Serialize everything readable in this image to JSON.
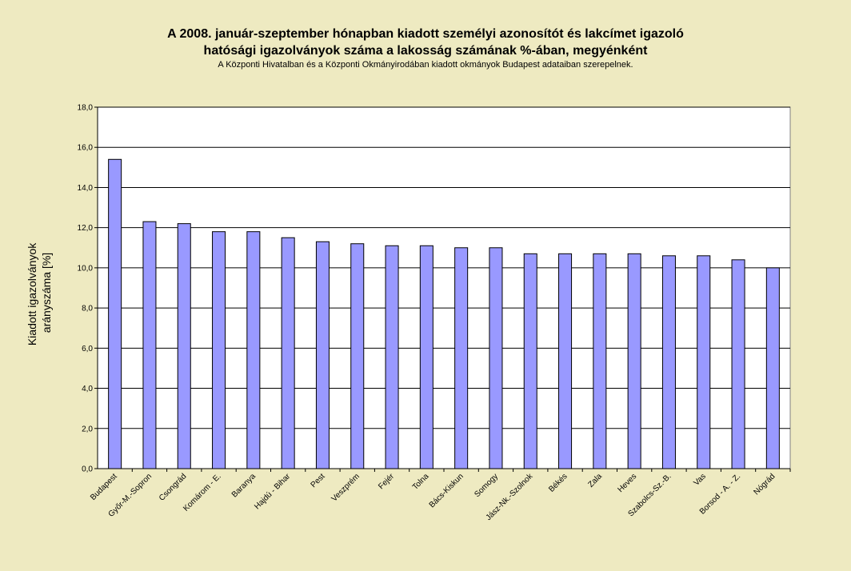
{
  "chart_data": {
    "type": "bar",
    "title_lines": [
      "A 2008. január-szeptember hónapban kiadott személyi azonosítót és lakcímet igazoló",
      "hatósági igazolványok száma a lakosság  számának %-ában, megyénként"
    ],
    "subtitle": "A Központi Hivatalban és a Központi Okmányirodában kiadott okmányok Budapest adataiban szerepelnek.",
    "ylabel_lines": [
      "Kiadott igazolványok",
      "arányszáma [%]"
    ],
    "xlabel": "",
    "ylim": [
      0,
      18
    ],
    "ytick_labels": [
      "0,0",
      "2,0",
      "4,0",
      "6,0",
      "8,0",
      "10,0",
      "12,0",
      "14,0",
      "16,0",
      "18,0"
    ],
    "grid": "horizontal",
    "bar_color": "#9999ff",
    "categories": [
      "Budapest",
      "Győr-M.-Sopron",
      "Csongrád",
      "Komárom - E.",
      "Baranya",
      "Hajdú - Bihar",
      "Pest",
      "Veszprém",
      "Fejér",
      "Tolna",
      "Bács-Kiskun",
      "Somogy",
      "Jász-Nk.-Szolnok",
      "Békés",
      "Zala",
      "Heves",
      "Szabolcs-Sz.-B.",
      "Vas",
      "Borsod - A. - Z.",
      "Nógrád"
    ],
    "values": [
      15.4,
      12.3,
      12.2,
      11.8,
      11.8,
      11.5,
      11.3,
      11.2,
      11.1,
      11.1,
      11.0,
      11.0,
      10.7,
      10.7,
      10.7,
      10.7,
      10.6,
      10.6,
      10.4,
      10.0
    ]
  }
}
